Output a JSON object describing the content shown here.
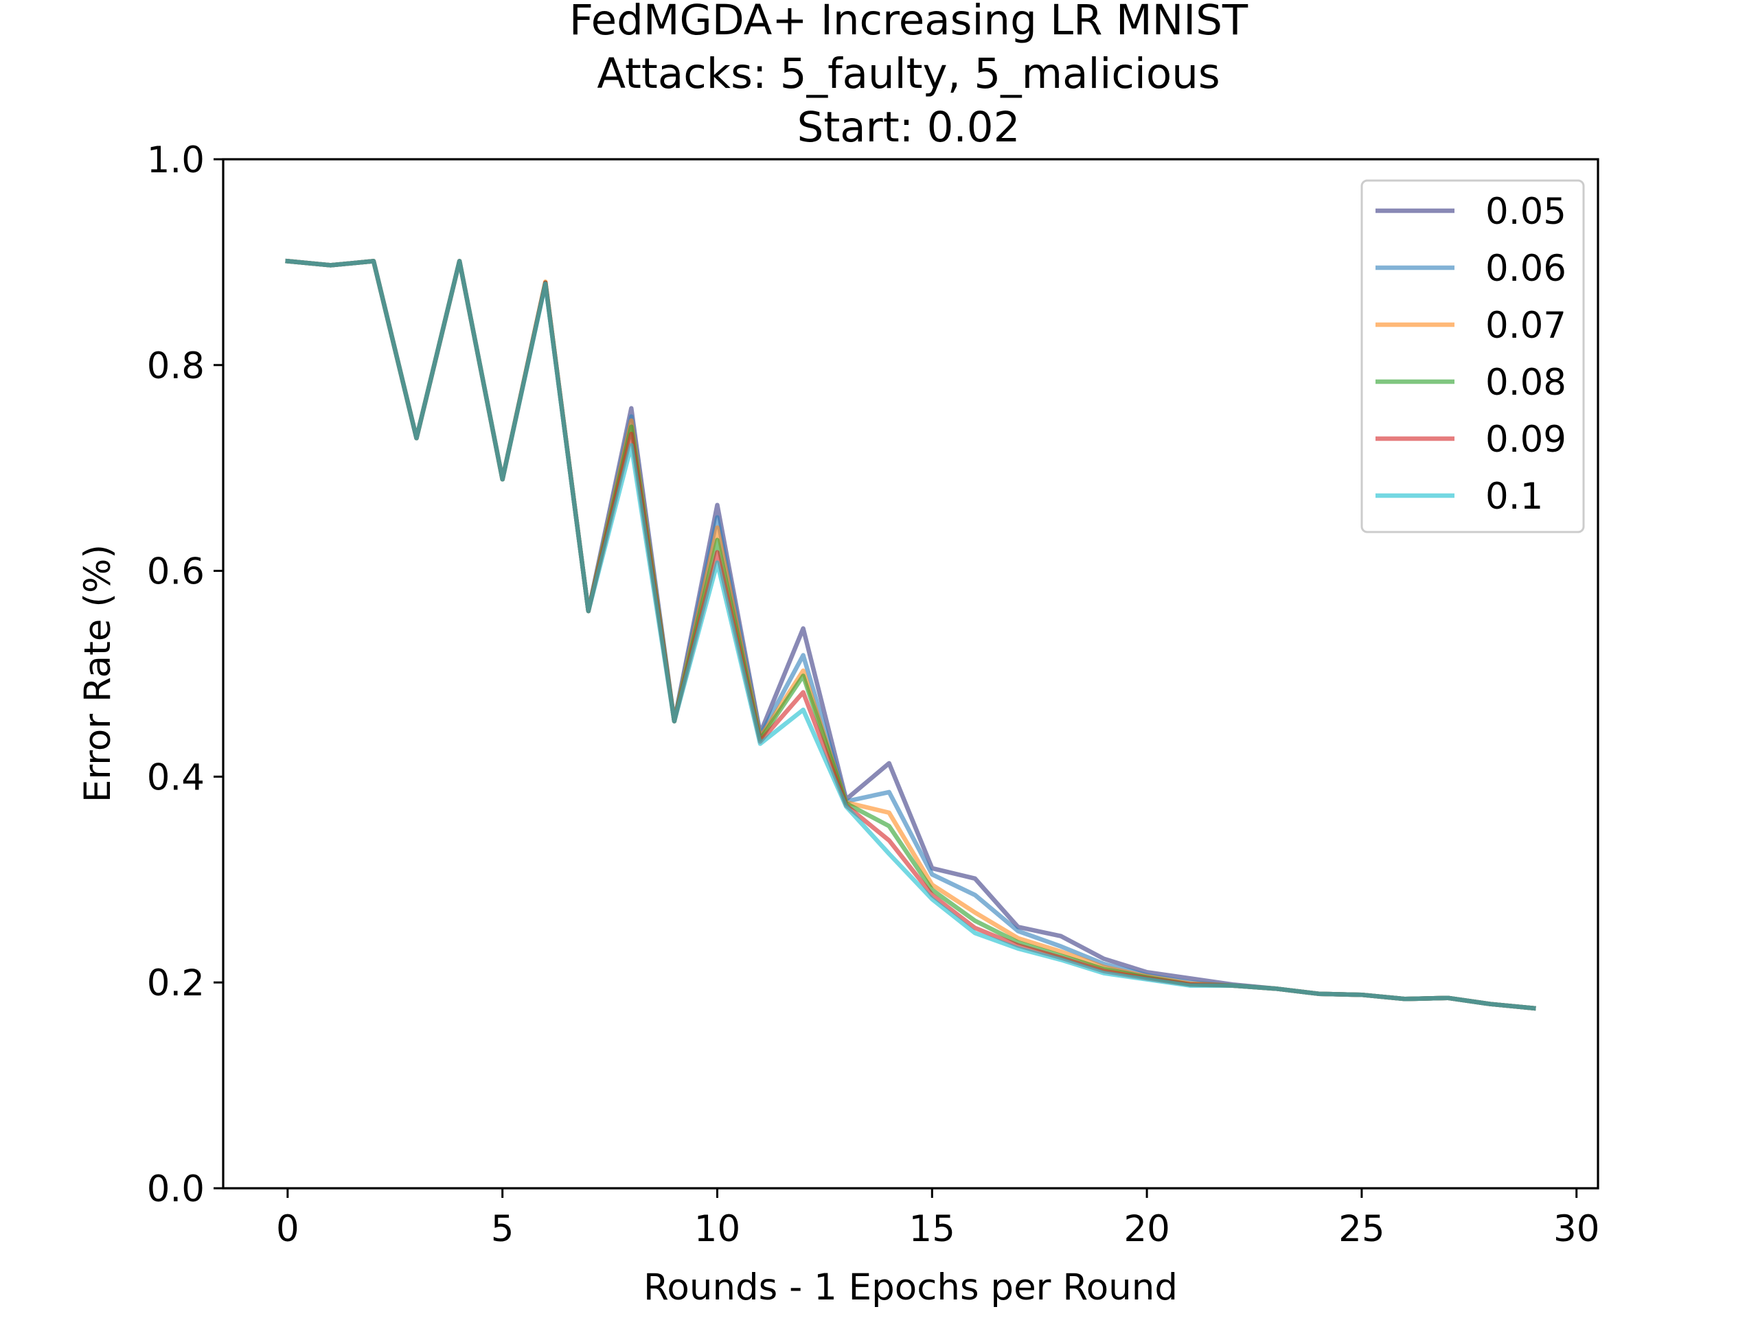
{
  "chart_data": {
    "type": "line",
    "title_lines": [
      "FedMGDA+ Increasing LR MNIST",
      "Attacks: 5_faulty, 5_malicious",
      "Start: 0.02"
    ],
    "xlabel": "Rounds - 1 Epochs per Round",
    "ylabel": "Error Rate (%)",
    "xlim": [
      -1.5,
      30.5
    ],
    "ylim": [
      0,
      1
    ],
    "xticks": [
      0,
      5,
      10,
      15,
      20,
      25,
      30
    ],
    "xtick_labels": [
      "0",
      "5",
      "10",
      "15",
      "20",
      "25",
      "30"
    ],
    "yticks": [
      0,
      0.2,
      0.4,
      0.6,
      0.8,
      1.0
    ],
    "ytick_labels": [
      "0.0",
      "0.2",
      "0.4",
      "0.6",
      "0.8",
      "1.0"
    ],
    "grid": false,
    "legend_position": "top-right",
    "x": [
      0,
      1,
      2,
      3,
      4,
      5,
      6,
      7,
      8,
      9,
      10,
      11,
      12,
      13,
      14,
      15,
      16,
      17,
      18,
      19,
      20,
      21,
      22,
      23,
      24,
      25,
      26,
      27,
      28,
      29
    ],
    "series": [
      {
        "name": "0.05",
        "color": "#3b3b84",
        "values": [
          0.901,
          0.897,
          0.901,
          0.729,
          0.901,
          0.689,
          0.88,
          0.561,
          0.758,
          0.454,
          0.664,
          0.442,
          0.544,
          0.378,
          0.413,
          0.311,
          0.301,
          0.254,
          0.245,
          0.223,
          0.21,
          0.204,
          0.198,
          0.194,
          0.189,
          0.188,
          0.184,
          0.185,
          0.179,
          0.175
        ]
      },
      {
        "name": "0.06",
        "color": "#2f7fba",
        "values": [
          0.901,
          0.897,
          0.901,
          0.729,
          0.901,
          0.689,
          0.88,
          0.561,
          0.75,
          0.454,
          0.652,
          0.44,
          0.518,
          0.376,
          0.385,
          0.305,
          0.285,
          0.25,
          0.235,
          0.218,
          0.207,
          0.2,
          0.197,
          0.194,
          0.189,
          0.188,
          0.184,
          0.185,
          0.179,
          0.175
        ]
      },
      {
        "name": "0.07",
        "color": "#ff8a1e",
        "values": [
          0.901,
          0.897,
          0.901,
          0.729,
          0.901,
          0.689,
          0.881,
          0.561,
          0.746,
          0.454,
          0.642,
          0.438,
          0.503,
          0.375,
          0.365,
          0.295,
          0.268,
          0.243,
          0.23,
          0.215,
          0.206,
          0.199,
          0.197,
          0.194,
          0.189,
          0.188,
          0.184,
          0.185,
          0.179,
          0.175
        ]
      },
      {
        "name": "0.08",
        "color": "#2ca02c",
        "values": [
          0.901,
          0.897,
          0.901,
          0.729,
          0.901,
          0.689,
          0.88,
          0.561,
          0.74,
          0.454,
          0.63,
          0.436,
          0.498,
          0.374,
          0.352,
          0.29,
          0.26,
          0.239,
          0.226,
          0.213,
          0.205,
          0.198,
          0.197,
          0.194,
          0.189,
          0.188,
          0.184,
          0.185,
          0.179,
          0.175
        ]
      },
      {
        "name": "0.09",
        "color": "#d62728",
        "values": [
          0.901,
          0.897,
          0.901,
          0.729,
          0.901,
          0.689,
          0.88,
          0.561,
          0.733,
          0.454,
          0.618,
          0.434,
          0.482,
          0.372,
          0.338,
          0.285,
          0.253,
          0.236,
          0.224,
          0.211,
          0.204,
          0.198,
          0.197,
          0.194,
          0.189,
          0.188,
          0.184,
          0.185,
          0.179,
          0.175
        ]
      },
      {
        "name": "0.1",
        "color": "#17becf",
        "values": [
          0.901,
          0.897,
          0.901,
          0.729,
          0.901,
          0.689,
          0.879,
          0.561,
          0.722,
          0.454,
          0.608,
          0.432,
          0.465,
          0.371,
          0.325,
          0.281,
          0.248,
          0.233,
          0.222,
          0.209,
          0.203,
          0.197,
          0.197,
          0.194,
          0.189,
          0.188,
          0.184,
          0.185,
          0.179,
          0.175
        ]
      }
    ]
  }
}
